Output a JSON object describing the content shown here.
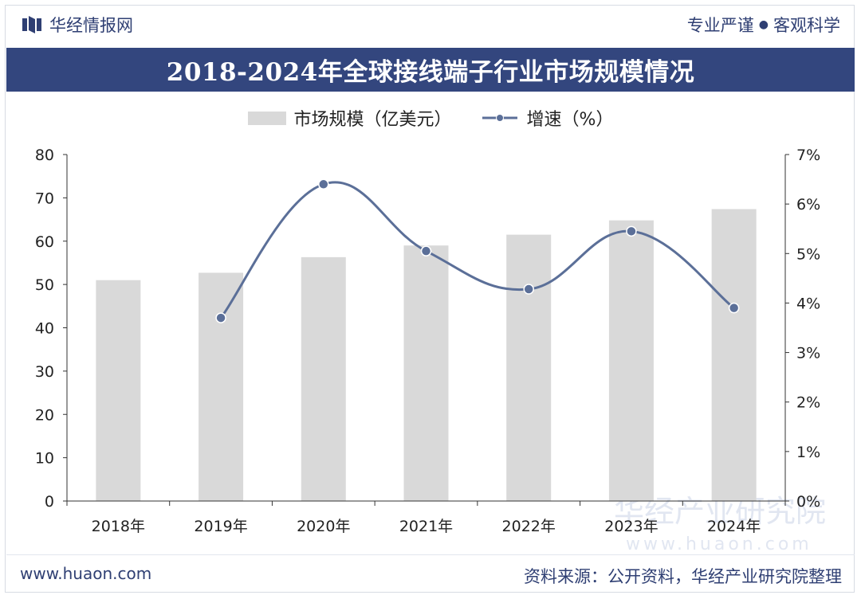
{
  "header": {
    "brand": "华经情报网",
    "slogan_left": "专业严谨",
    "slogan_dot": "●",
    "slogan_right": "客观科学"
  },
  "footer": {
    "website": "www.huaon.com",
    "source": "资料来源：公开资料，华经产业研究院整理"
  },
  "watermarks": [
    "华经产业研究院",
    "www.huaon.com"
  ],
  "colors": {
    "title_bg": "#33467e",
    "bar": "#d9d9d9",
    "line": "#5b6f98",
    "brand": "#2f3f73"
  },
  "chart_data": {
    "type": "bar+line",
    "title": "2018-2024年全球接线端子行业市场规模情况",
    "categories": [
      "2018年",
      "2019年",
      "2020年",
      "2021年",
      "2022年",
      "2023年",
      "2024年"
    ],
    "series": [
      {
        "name": "市场规模（亿美元）",
        "type": "bar",
        "axis": "left",
        "values": [
          51.0,
          52.7,
          56.3,
          59.0,
          61.5,
          64.8,
          67.4
        ]
      },
      {
        "name": "增速（%）",
        "type": "line",
        "axis": "right",
        "values": [
          null,
          3.7,
          6.4,
          5.05,
          4.28,
          5.45,
          3.9
        ]
      }
    ],
    "legend": [
      "市场规模（亿美元）",
      "增速（%）"
    ],
    "left_axis": {
      "min": 0,
      "max": 80,
      "step": 10,
      "ticks": [
        "0",
        "10",
        "20",
        "30",
        "40",
        "50",
        "60",
        "70",
        "80"
      ]
    },
    "right_axis": {
      "min": 0,
      "max": 7,
      "step": 1,
      "ticks": [
        "0%",
        "1%",
        "2%",
        "3%",
        "4%",
        "5%",
        "6%",
        "7%"
      ]
    },
    "legend_position": "top-center",
    "grid": false
  }
}
